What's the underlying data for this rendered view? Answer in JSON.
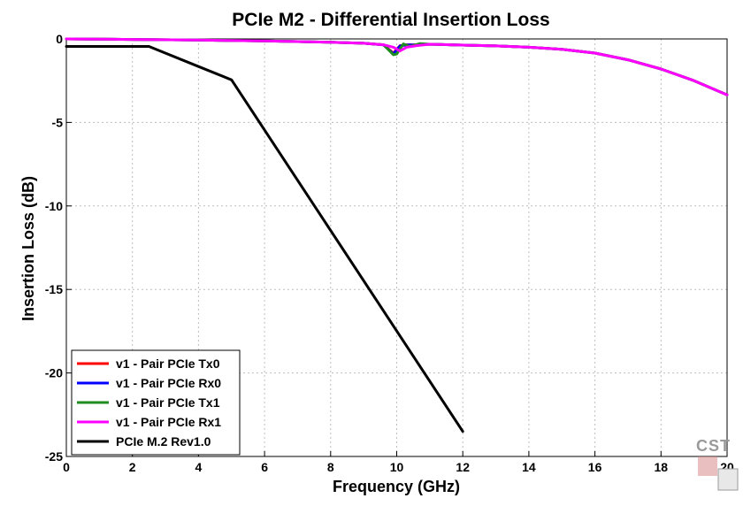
{
  "chart_data": {
    "type": "line",
    "title": "PCIe M2 - Differential Insertion Loss",
    "xlabel": "Frequency (GHz)",
    "ylabel": "Insertion Loss (dB)",
    "xlim": [
      0,
      20
    ],
    "ylim": [
      -25,
      0
    ],
    "xticks": [
      0,
      2,
      4,
      6,
      8,
      10,
      12,
      14,
      16,
      18,
      20
    ],
    "yticks": [
      0,
      -5,
      -10,
      -15,
      -20,
      -25
    ],
    "grid": true,
    "legend_position": "bottom-left",
    "series": [
      {
        "name": "v1 - Pair PCIe Tx0",
        "color": "#ff0000",
        "x": [
          0,
          2,
          4,
          6,
          8,
          9,
          9.6,
          9.9,
          10.1,
          10.3,
          10.6,
          11,
          12,
          13,
          14,
          15,
          16,
          17,
          18,
          19,
          20
        ],
        "y": [
          0,
          -0.03,
          -0.07,
          -0.12,
          -0.2,
          -0.26,
          -0.35,
          -0.85,
          -0.4,
          -0.35,
          -0.36,
          -0.32,
          -0.37,
          -0.42,
          -0.5,
          -0.62,
          -0.85,
          -1.25,
          -1.8,
          -2.5,
          -3.35
        ]
      },
      {
        "name": "v1 - Pair PCIe Rx0",
        "color": "#0000ff",
        "x": [
          0,
          2,
          4,
          6,
          8,
          9,
          9.6,
          9.9,
          10.1,
          10.3,
          10.6,
          11,
          12,
          13,
          14,
          15,
          16,
          17,
          18,
          19,
          20
        ],
        "y": [
          0,
          -0.03,
          -0.07,
          -0.12,
          -0.2,
          -0.26,
          -0.36,
          -0.9,
          -0.42,
          -0.36,
          -0.36,
          -0.32,
          -0.37,
          -0.42,
          -0.5,
          -0.62,
          -0.85,
          -1.25,
          -1.8,
          -2.5,
          -3.35
        ]
      },
      {
        "name": "v1 - Pair PCIe Tx1",
        "color": "#1e8c1e",
        "x": [
          0,
          2,
          4,
          6,
          8,
          9,
          9.6,
          9.9,
          10.0,
          10.2,
          10.4,
          10.7,
          11,
          12,
          13,
          14,
          15,
          16,
          17,
          18,
          19,
          20
        ],
        "y": [
          0,
          -0.03,
          -0.07,
          -0.12,
          -0.2,
          -0.26,
          -0.35,
          -0.95,
          -0.9,
          -0.3,
          -0.45,
          -0.28,
          -0.32,
          -0.37,
          -0.42,
          -0.5,
          -0.62,
          -0.85,
          -1.25,
          -1.8,
          -2.5,
          -3.35
        ]
      },
      {
        "name": "v1 - Pair PCIe Rx1",
        "color": "#ff00ff",
        "x": [
          0,
          2,
          4,
          6,
          8,
          9,
          9.6,
          9.9,
          10.1,
          10.3,
          10.6,
          11,
          12,
          13,
          14,
          15,
          16,
          17,
          18,
          19,
          20
        ],
        "y": [
          0,
          -0.03,
          -0.07,
          -0.12,
          -0.2,
          -0.26,
          -0.35,
          -0.5,
          -0.72,
          -0.5,
          -0.4,
          -0.32,
          -0.37,
          -0.42,
          -0.5,
          -0.62,
          -0.85,
          -1.25,
          -1.8,
          -2.5,
          -3.35
        ]
      },
      {
        "name": "PCIe M.2 Rev1.0",
        "color": "#000000",
        "x": [
          0,
          2.5,
          4,
          5,
          12
        ],
        "y": [
          -0.45,
          -0.45,
          -1.65,
          -2.45,
          -23.5
        ]
      }
    ]
  },
  "watermark": {
    "text": "CST"
  }
}
